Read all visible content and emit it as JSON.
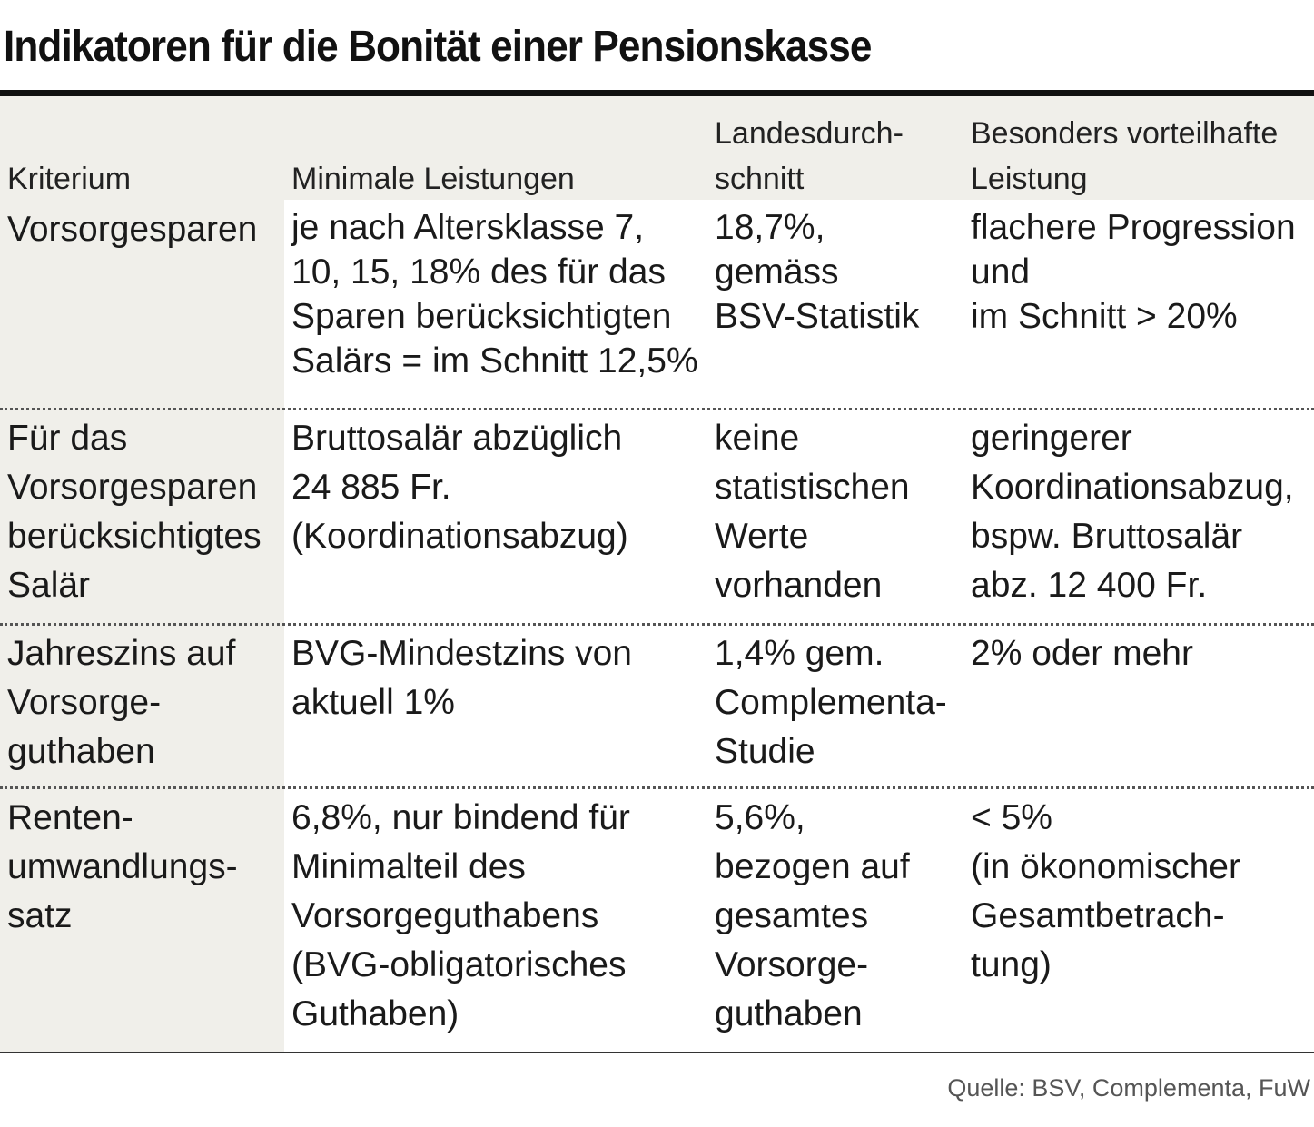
{
  "title": "Indikatoren für die Bonität einer Pensionskasse",
  "table": {
    "headers": [
      "Kriterium",
      "Minimale Leistungen",
      "Landesdurch-\nschnitt",
      "Besonders vorteilhafte\nLeistung"
    ],
    "rows": [
      {
        "criterion": "Vorsorgesparen",
        "minimal": "je nach Altersklasse 7,\n10, 15, 18% des für das\nSparen berücksichtigten\nSalärs = im Schnitt 12,5%",
        "average": "18,7%,\ngemäss\nBSV-Statistik",
        "advantageous": "flachere Progression\nund\nim Schnitt > 20%"
      },
      {
        "criterion": "Für das\nVorsorgesparen\nberücksichtigtes\nSalär",
        "minimal": "Bruttosalär abzüglich\n24 885 Fr.\n(Koordinationsabzug)",
        "average": "keine\nstatistischen\nWerte\nvorhanden",
        "advantageous": "geringerer\nKoordinationsabzug,\nbspw. Bruttosalär\nabz. 12 400 Fr."
      },
      {
        "criterion": "Jahreszins auf\nVorsorge-\nguthaben",
        "minimal": "BVG-Mindestzins von\naktuell 1%",
        "average": "1,4% gem.\nComplementa-\nStudie",
        "advantageous": "2% oder mehr"
      },
      {
        "criterion": "Renten-\numwandlungs-\nsatz",
        "minimal": "6,8%, nur bindend für\nMinimalteil des\nVorsorgeguthabens\n(BVG-obligatorisches\nGuthaben)",
        "average": "5,6%,\nbezogen auf\ngesamtes\nVorsorge-\nguthaben",
        "advantageous": "< 5%\n(in ökonomischer\nGesamtbetrach-\ntung)"
      }
    ]
  },
  "source": "Quelle: BSV, Complementa, FuW"
}
